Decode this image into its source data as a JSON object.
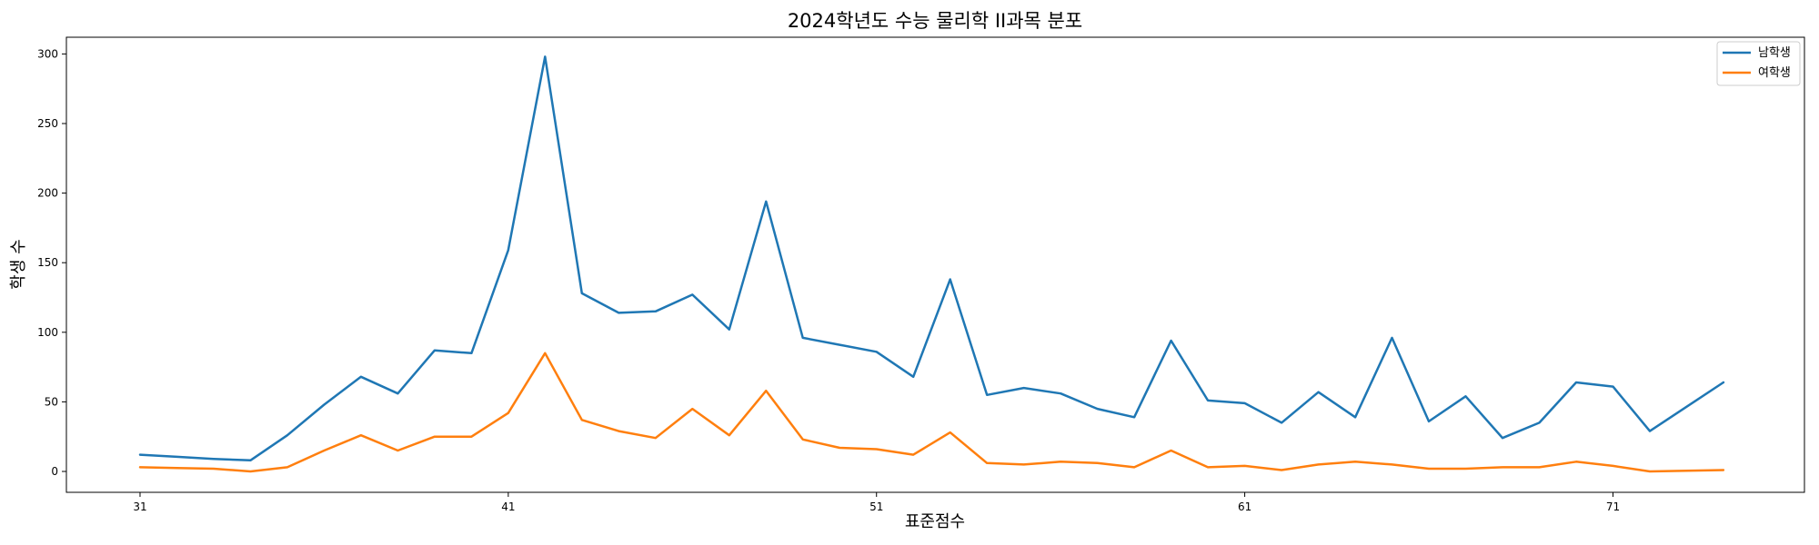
{
  "chart_data": {
    "type": "line",
    "title": "2024학년도 수능 물리학 II과목 분포",
    "xlabel": "표준점수",
    "ylabel": "학생 수",
    "xlim": [
      29,
      76.2
    ],
    "ylim": [
      -15,
      312
    ],
    "x_ticks": [
      31,
      41,
      51,
      61,
      71
    ],
    "y_ticks": [
      0,
      50,
      100,
      150,
      200,
      250,
      300
    ],
    "grid": false,
    "legend_position": "top-right",
    "x": [
      31,
      32,
      33,
      34,
      35,
      36,
      37,
      38,
      39,
      40,
      41,
      42,
      43,
      44,
      45,
      46,
      47,
      48,
      49,
      50,
      51,
      52,
      53,
      54,
      55,
      56,
      57,
      58,
      59,
      60,
      61,
      62,
      63,
      64,
      65,
      66,
      67,
      68,
      69,
      70,
      71,
      72,
      73,
      74
    ],
    "series": [
      {
        "name": "남학생",
        "color": "#1f77b4",
        "values": [
          12,
          10.5,
          9,
          8,
          26,
          48,
          68,
          56,
          87,
          85,
          159,
          298,
          128,
          114,
          115,
          127,
          102,
          194,
          96,
          91,
          86,
          68,
          138,
          55,
          60,
          56,
          45,
          39,
          94,
          51,
          49,
          35,
          57,
          39,
          96,
          36,
          54,
          24,
          35,
          64,
          61,
          29,
          46.5,
          64
        ]
      },
      {
        "name": "여학생",
        "color": "#ff7f0e",
        "values": [
          3,
          2.5,
          2,
          0,
          3,
          15,
          26,
          15,
          25,
          25,
          42,
          85,
          37,
          29,
          24,
          45,
          26,
          58,
          23,
          17,
          16,
          12,
          28,
          6,
          5,
          7,
          6,
          3,
          15,
          3,
          4,
          1,
          5,
          7,
          5,
          2,
          2,
          3,
          3,
          7,
          4,
          0,
          0.5,
          1
        ]
      }
    ]
  }
}
